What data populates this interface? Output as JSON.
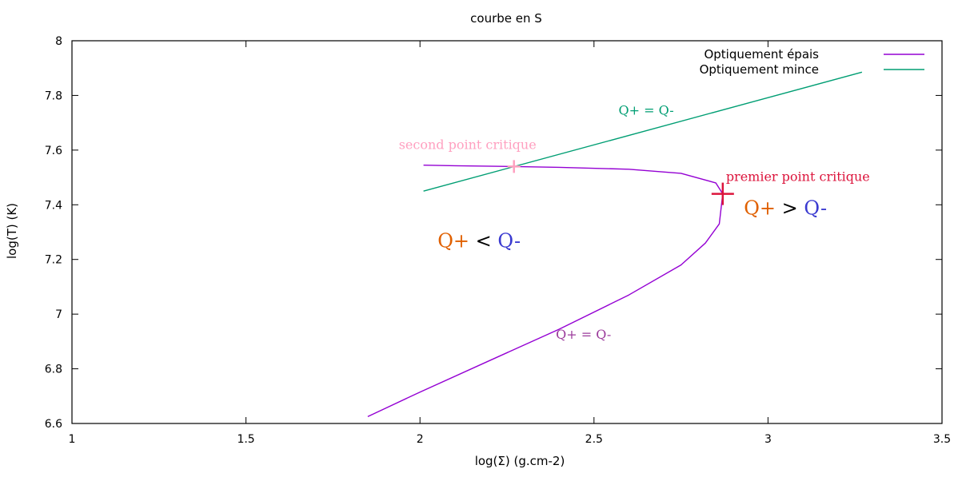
{
  "chart_data": {
    "type": "line",
    "title": "courbe en S",
    "xlabel": "log(Σ) (g.cm-2)",
    "ylabel": "log(T) (K)",
    "xlim": [
      1,
      3.5
    ],
    "ylim": [
      6.6,
      8
    ],
    "x_ticks": [
      "1",
      "1.5",
      "2",
      "2.5",
      "3",
      "3.5"
    ],
    "y_ticks": [
      "6.6",
      "6.8",
      "7",
      "7.2",
      "7.4",
      "7.6",
      "7.8",
      "8"
    ],
    "legend_position": "top-right",
    "grid": false,
    "series": [
      {
        "name": "Optiquement épais",
        "color": "#9400d3",
        "points": [
          [
            1.85,
            6.625
          ],
          [
            2.0,
            6.715
          ],
          [
            2.2,
            6.83
          ],
          [
            2.4,
            6.945
          ],
          [
            2.6,
            7.07
          ],
          [
            2.75,
            7.18
          ],
          [
            2.82,
            7.26
          ],
          [
            2.86,
            7.33
          ],
          [
            2.87,
            7.44
          ],
          [
            2.85,
            7.48
          ],
          [
            2.75,
            7.515
          ],
          [
            2.6,
            7.53
          ],
          [
            2.4,
            7.537
          ],
          [
            2.27,
            7.54
          ],
          [
            2.1,
            7.543
          ],
          [
            2.01,
            7.545
          ]
        ]
      },
      {
        "name": "Optiquement mince",
        "color": "#009e73",
        "points": [
          [
            2.01,
            7.45
          ],
          [
            3.27,
            7.885
          ]
        ]
      }
    ],
    "critical_points": [
      {
        "label": "second point critique",
        "x": 2.27,
        "y": 7.54,
        "color": "#ffa0c0"
      },
      {
        "label": "premier point critique",
        "x": 2.87,
        "y": 7.44,
        "color": "#dc143c"
      }
    ],
    "annotations": [
      {
        "id": "thin-eq",
        "x": 2.65,
        "y": 7.73,
        "parts": [
          {
            "text": "Q+ = Q-",
            "color": "#009e73"
          }
        ],
        "size": 16
      },
      {
        "id": "thick-eq",
        "x": 2.47,
        "y": 6.91,
        "parts": [
          {
            "text": "Q+ = Q-",
            "color": "#9b3a9b"
          }
        ],
        "size": 16
      },
      {
        "id": "q-less",
        "x": 2.17,
        "y": 7.245,
        "parts": [
          {
            "text": "Q+",
            "color": "#e06000"
          },
          {
            "text": " < ",
            "color": "#000000"
          },
          {
            "text": "Q-",
            "color": "#3a3ad0"
          }
        ],
        "size": 24
      },
      {
        "id": "q-greater",
        "x": 3.05,
        "y": 7.365,
        "parts": [
          {
            "text": "Q+",
            "color": "#e06000"
          },
          {
            "text": " > ",
            "color": "#000000"
          },
          {
            "text": "Q-",
            "color": "#3a3ad0"
          }
        ],
        "size": 24
      }
    ]
  }
}
